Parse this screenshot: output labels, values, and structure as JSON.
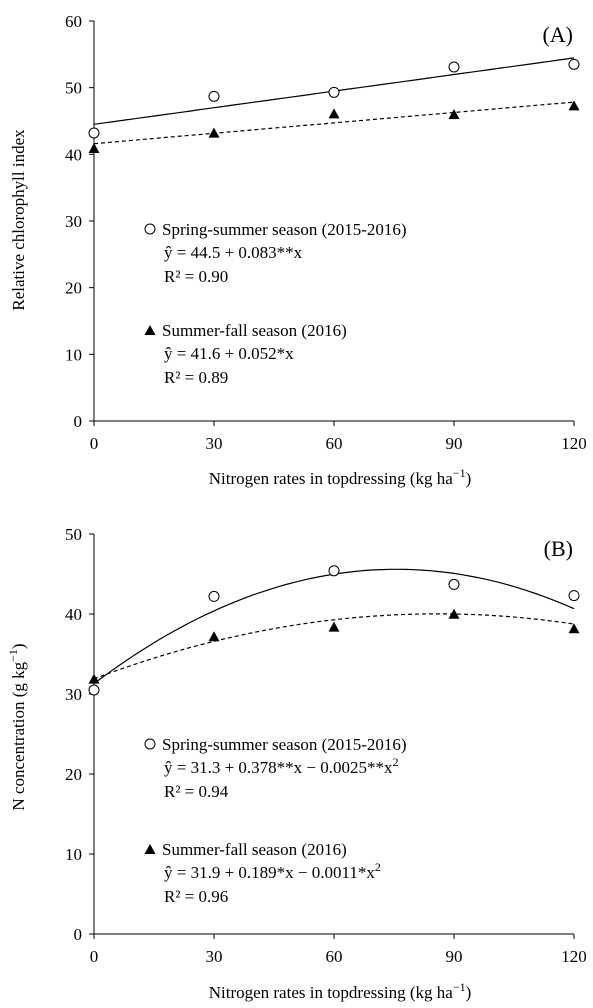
{
  "chart_data": [
    {
      "type": "scatter",
      "panel_label": "(A)",
      "xlabel": "Nitrogen rates in topdressing  (kg ha",
      "xlabel_sup": "−1",
      "xlabel_end": ")",
      "ylabel": "Relative  chlorophyll  index",
      "xlim": [
        0,
        120
      ],
      "ylim": [
        0,
        60
      ],
      "xticks": [
        0,
        30,
        60,
        90,
        120
      ],
      "yticks": [
        0,
        10,
        20,
        30,
        40,
        50,
        60
      ],
      "series": [
        {
          "name": "Spring-summer  season (2015-2016)",
          "marker": "open-circle",
          "line": "solid",
          "x": [
            0,
            30,
            60,
            90,
            120
          ],
          "y": [
            43.2,
            48.7,
            49.3,
            53.1,
            53.5
          ],
          "equation": "ŷ = 44.5 + 0.083**x",
          "r2": "R² = 0.90",
          "fit": [
            44.5,
            0.083,
            0
          ]
        },
        {
          "name": "Summer-fall  season (2016)",
          "marker": "filled-triangle",
          "line": "dashed",
          "x": [
            0,
            30,
            60,
            90,
            120
          ],
          "y": [
            40.8,
            43.1,
            46.0,
            45.9,
            47.2
          ],
          "equation": "ŷ = 41.6 + 0.052*x",
          "r2": "R² = 0.89",
          "fit": [
            41.6,
            0.052,
            0
          ]
        }
      ]
    },
    {
      "type": "scatter",
      "panel_label": "(B)",
      "xlabel": "Nitrogen rates in topdressing  (kg ha",
      "xlabel_sup": "−1",
      "xlabel_end": ")",
      "ylabel": "N concentration  (g kg",
      "ylabel_sup": "−1",
      "ylabel_end": ")",
      "xlim": [
        0,
        120
      ],
      "ylim": [
        0,
        50
      ],
      "xticks": [
        0,
        30,
        60,
        90,
        120
      ],
      "yticks": [
        0,
        10,
        20,
        30,
        40,
        50
      ],
      "series": [
        {
          "name": "Spring-summer  season (2015-2016)",
          "marker": "open-circle",
          "line": "solid",
          "x": [
            0,
            30,
            60,
            90,
            120
          ],
          "y": [
            30.5,
            42.2,
            45.4,
            43.7,
            42.3
          ],
          "equation": "ŷ = 31.3 + 0.378**x − 0.0025**x",
          "equation_sup": "2",
          "r2": "R² = 0.94",
          "fit": [
            31.3,
            0.378,
            -0.0025
          ]
        },
        {
          "name": "Summer-fall  season (2016)",
          "marker": "filled-triangle",
          "line": "dashed",
          "x": [
            0,
            30,
            60,
            90,
            120
          ],
          "y": [
            31.8,
            37.1,
            38.3,
            39.9,
            38.1
          ],
          "equation": "ŷ = 31.9 + 0.189*x − 0.0011*x",
          "equation_sup": "2",
          "r2": "R² = 0.96",
          "fit": [
            31.9,
            0.189,
            -0.0011
          ]
        }
      ]
    }
  ]
}
